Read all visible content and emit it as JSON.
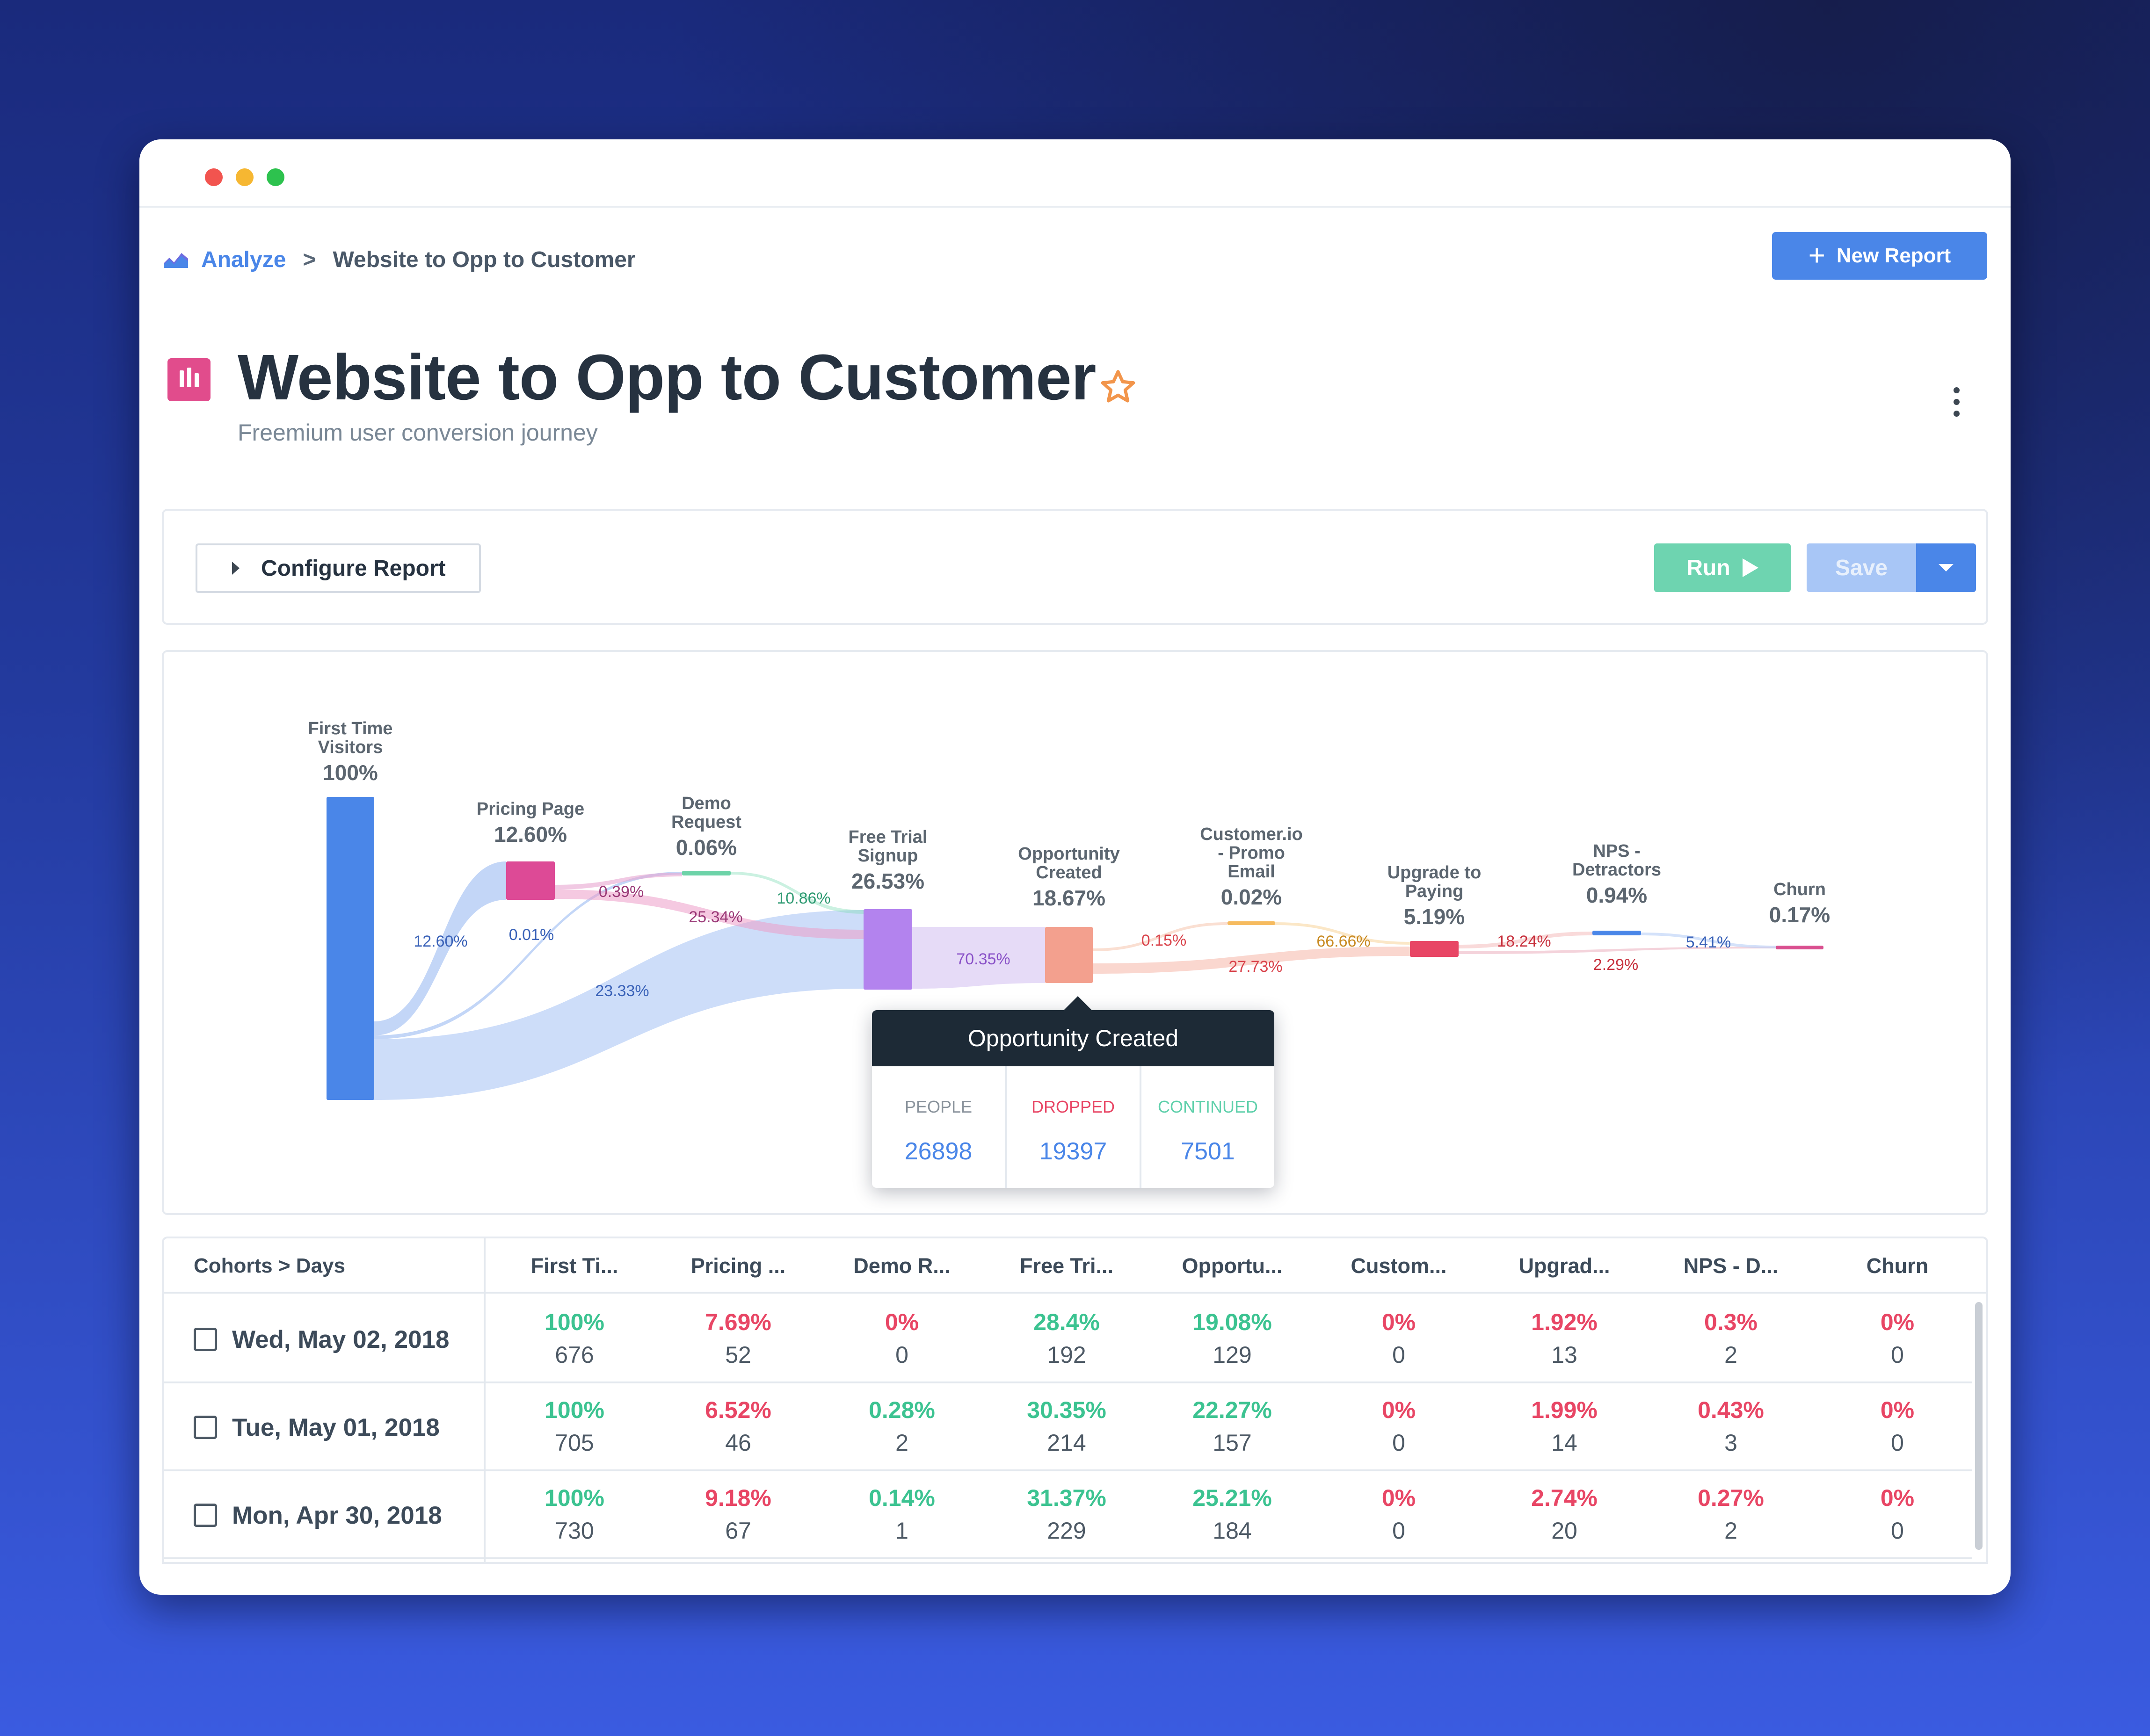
{
  "breadcrumb": {
    "root": "Analyze",
    "separator": ">",
    "current": "Website to Opp to Customer"
  },
  "header": {
    "new_report_label": "New Report",
    "title": "Website to Opp to Customer",
    "subtitle": "Freemium user conversion journey"
  },
  "config": {
    "configure_label": "Configure Report",
    "run_label": "Run",
    "save_label": "Save"
  },
  "colors": {
    "accent": "#4a86e8",
    "run": "#6ed4b0",
    "positive": "#3cc391",
    "negative": "#e84665",
    "tooltip_bg": "#1d2a36"
  },
  "chart_data": {
    "type": "sankey",
    "nodes": [
      {
        "id": "first",
        "label": [
          "First Time",
          "Visitors"
        ],
        "pct": "100%",
        "color": "#4a86e8"
      },
      {
        "id": "pricing",
        "label": [
          "Pricing Page"
        ],
        "pct": "12.60%",
        "color": "#dd4a96"
      },
      {
        "id": "demo",
        "label": [
          "Demo",
          "Request"
        ],
        "pct": "0.06%",
        "color": "#6dd3a8"
      },
      {
        "id": "trial",
        "label": [
          "Free Trial",
          "Signup"
        ],
        "pct": "26.53%",
        "color": "#b383ee"
      },
      {
        "id": "opp",
        "label": [
          "Opportunity",
          "Created"
        ],
        "pct": "18.67%",
        "color": "#f3a08e"
      },
      {
        "id": "promo",
        "label": [
          "Customer.io",
          "- Promo",
          "Email"
        ],
        "pct": "0.02%",
        "color": "#f6bb5f"
      },
      {
        "id": "upgrade",
        "label": [
          "Upgrade to",
          "Paying"
        ],
        "pct": "5.19%",
        "color": "#e84665"
      },
      {
        "id": "nps",
        "label": [
          "NPS -",
          "Detractors"
        ],
        "pct": "0.94%",
        "color": "#4a86e8"
      },
      {
        "id": "churn",
        "label": [
          "Churn"
        ],
        "pct": "0.17%",
        "color": "#d94f8f"
      }
    ],
    "links": [
      {
        "from": "first",
        "to": "pricing",
        "label": "12.60%",
        "label_color": "#3a62b8"
      },
      {
        "from": "first",
        "to": "demo",
        "label": "0.01%",
        "label_color": "#3a62b8"
      },
      {
        "from": "first",
        "to": "trial",
        "label": "23.33%",
        "label_color": "#3a62b8"
      },
      {
        "from": "pricing",
        "to": "demo",
        "label": "0.39%",
        "label_color": "#9b3a78"
      },
      {
        "from": "pricing",
        "to": "trial",
        "label": "25.34%",
        "label_color": "#9b3a78"
      },
      {
        "from": "demo",
        "to": "trial",
        "label": "10.86%",
        "label_color": "#2e9a72"
      },
      {
        "from": "trial",
        "to": "opp",
        "label": "70.35%",
        "label_color": "#8a52c8"
      },
      {
        "from": "opp",
        "to": "promo",
        "label": "0.15%",
        "label_color": "#d9434b"
      },
      {
        "from": "opp",
        "to": "upgrade",
        "label": "27.73%",
        "label_color": "#d9434b"
      },
      {
        "from": "promo",
        "to": "upgrade",
        "label": "66.66%",
        "label_color": "#c88a22"
      },
      {
        "from": "upgrade",
        "to": "nps",
        "label": "18.24%",
        "label_color": "#c8333f"
      },
      {
        "from": "upgrade",
        "to": "churn",
        "label": "2.29%",
        "label_color": "#c8333f"
      },
      {
        "from": "nps",
        "to": "churn",
        "label": "5.41%",
        "label_color": "#3a62b8"
      }
    ]
  },
  "tooltip": {
    "title": "Opportunity Created",
    "people_label": "PEOPLE",
    "people_value": "26898",
    "dropped_label": "DROPPED",
    "dropped_value": "19397",
    "continued_label": "CONTINUED",
    "continued_value": "7501"
  },
  "table": {
    "first_header": "Cohorts > Days",
    "headers": [
      "First Ti...",
      "Pricing ...",
      "Demo R...",
      "Free Tri...",
      "Opportu...",
      "Custom...",
      "Upgrad...",
      "NPS - D...",
      "Churn"
    ],
    "rows": [
      {
        "date": "Wed, May 02, 2018",
        "cells": [
          {
            "pct": "100%",
            "tone": "green",
            "count": "676"
          },
          {
            "pct": "7.69%",
            "tone": "red",
            "count": "52"
          },
          {
            "pct": "0%",
            "tone": "red",
            "count": "0"
          },
          {
            "pct": "28.4%",
            "tone": "green",
            "count": "192"
          },
          {
            "pct": "19.08%",
            "tone": "green",
            "count": "129"
          },
          {
            "pct": "0%",
            "tone": "red",
            "count": "0"
          },
          {
            "pct": "1.92%",
            "tone": "red",
            "count": "13"
          },
          {
            "pct": "0.3%",
            "tone": "red",
            "count": "2"
          },
          {
            "pct": "0%",
            "tone": "red",
            "count": "0"
          }
        ]
      },
      {
        "date": "Tue, May 01, 2018",
        "cells": [
          {
            "pct": "100%",
            "tone": "green",
            "count": "705"
          },
          {
            "pct": "6.52%",
            "tone": "red",
            "count": "46"
          },
          {
            "pct": "0.28%",
            "tone": "green",
            "count": "2"
          },
          {
            "pct": "30.35%",
            "tone": "green",
            "count": "214"
          },
          {
            "pct": "22.27%",
            "tone": "green",
            "count": "157"
          },
          {
            "pct": "0%",
            "tone": "red",
            "count": "0"
          },
          {
            "pct": "1.99%",
            "tone": "red",
            "count": "14"
          },
          {
            "pct": "0.43%",
            "tone": "red",
            "count": "3"
          },
          {
            "pct": "0%",
            "tone": "red",
            "count": "0"
          }
        ]
      },
      {
        "date": "Mon, Apr 30, 2018",
        "cells": [
          {
            "pct": "100%",
            "tone": "green",
            "count": "730"
          },
          {
            "pct": "9.18%",
            "tone": "red",
            "count": "67"
          },
          {
            "pct": "0.14%",
            "tone": "green",
            "count": "1"
          },
          {
            "pct": "31.37%",
            "tone": "green",
            "count": "229"
          },
          {
            "pct": "25.21%",
            "tone": "green",
            "count": "184"
          },
          {
            "pct": "0%",
            "tone": "red",
            "count": "0"
          },
          {
            "pct": "2.74%",
            "tone": "red",
            "count": "20"
          },
          {
            "pct": "0.27%",
            "tone": "red",
            "count": "2"
          },
          {
            "pct": "0%",
            "tone": "red",
            "count": "0"
          }
        ]
      }
    ]
  }
}
